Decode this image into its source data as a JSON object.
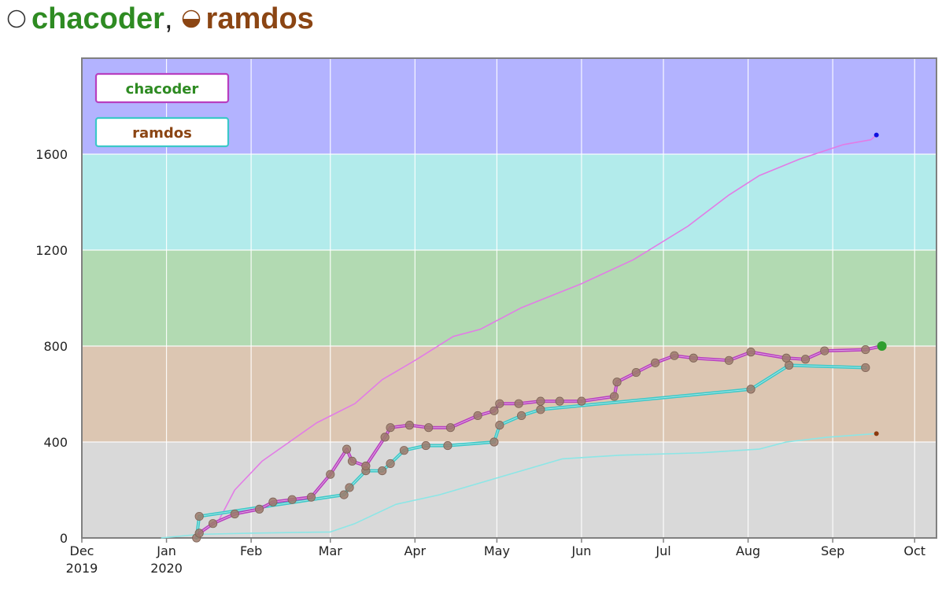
{
  "header": {
    "name1": "chacoder",
    "separator": ",",
    "name2": "ramdos",
    "color1": "#2e8b22",
    "color2": "#8b4513"
  },
  "chart_data": {
    "type": "line",
    "ylim": [
      0,
      2000
    ],
    "xlim": [
      "2019-12-01",
      "2020-10-09"
    ],
    "grid": true,
    "legend_placement": "top-left",
    "yticks": [
      0,
      400,
      800,
      1200,
      1600
    ],
    "xticks": [
      {
        "date": "2019-12-01",
        "label1": "Dec",
        "label2": "2019"
      },
      {
        "date": "2020-01-01",
        "label1": "Jan",
        "label2": "2020"
      },
      {
        "date": "2020-02-01",
        "label1": "Feb",
        "label2": ""
      },
      {
        "date": "2020-03-01",
        "label1": "Mar",
        "label2": ""
      },
      {
        "date": "2020-04-01",
        "label1": "Apr",
        "label2": ""
      },
      {
        "date": "2020-05-01",
        "label1": "May",
        "label2": ""
      },
      {
        "date": "2020-06-01",
        "label1": "Jun",
        "label2": ""
      },
      {
        "date": "2020-07-01",
        "label1": "Jul",
        "label2": ""
      },
      {
        "date": "2020-08-01",
        "label1": "Aug",
        "label2": ""
      },
      {
        "date": "2020-09-01",
        "label1": "Sep",
        "label2": ""
      },
      {
        "date": "2020-10-01",
        "label1": "Oct",
        "label2": ""
      }
    ],
    "bands": [
      {
        "from": 0,
        "to": 400,
        "color": "#d9d9d9"
      },
      {
        "from": 400,
        "to": 800,
        "color": "#dcc6b2"
      },
      {
        "from": 800,
        "to": 1200,
        "color": "#b2dab2"
      },
      {
        "from": 1200,
        "to": 1600,
        "color": "#b2ebeb"
      },
      {
        "from": 1600,
        "to": 2000,
        "color": "#b3b3ff"
      }
    ],
    "series": [
      {
        "name": "chacoder",
        "kind": "rating",
        "color": "#b83fbf",
        "label_color": "#2e8b22",
        "points": [
          [
            "2020-01-13",
            20
          ],
          [
            "2020-01-18",
            60
          ],
          [
            "2020-01-26",
            100
          ],
          [
            "2020-02-04",
            120
          ],
          [
            "2020-02-09",
            150
          ],
          [
            "2020-02-16",
            160
          ],
          [
            "2020-02-23",
            170
          ],
          [
            "2020-03-01",
            265
          ],
          [
            "2020-03-07",
            370
          ],
          [
            "2020-03-09",
            320
          ],
          [
            "2020-03-14",
            300
          ],
          [
            "2020-03-21",
            420
          ],
          [
            "2020-03-23",
            460
          ],
          [
            "2020-03-30",
            470
          ],
          [
            "2020-04-06",
            460
          ],
          [
            "2020-04-14",
            460
          ],
          [
            "2020-04-24",
            510
          ],
          [
            "2020-04-30",
            530
          ],
          [
            "2020-05-02",
            560
          ],
          [
            "2020-05-09",
            560
          ],
          [
            "2020-05-17",
            570
          ],
          [
            "2020-05-24",
            570
          ],
          [
            "2020-06-01",
            570
          ],
          [
            "2020-06-13",
            590
          ],
          [
            "2020-06-14",
            650
          ],
          [
            "2020-06-21",
            690
          ],
          [
            "2020-06-28",
            730
          ],
          [
            "2020-07-05",
            760
          ],
          [
            "2020-07-12",
            750
          ],
          [
            "2020-07-25",
            740
          ],
          [
            "2020-08-02",
            775
          ],
          [
            "2020-08-15",
            750
          ],
          [
            "2020-08-22",
            745
          ],
          [
            "2020-08-29",
            780
          ],
          [
            "2020-09-13",
            785
          ],
          [
            "2020-09-19",
            800
          ]
        ]
      },
      {
        "name": "ramdos",
        "kind": "rating",
        "color": "#3cc8c8",
        "label_color": "#8b4513",
        "points": [
          [
            "2020-01-12",
            0
          ],
          [
            "2020-01-13",
            90
          ],
          [
            "2020-03-06",
            180
          ],
          [
            "2020-03-08",
            210
          ],
          [
            "2020-03-14",
            280
          ],
          [
            "2020-03-20",
            280
          ],
          [
            "2020-03-23",
            310
          ],
          [
            "2020-03-28",
            365
          ],
          [
            "2020-04-05",
            385
          ],
          [
            "2020-04-13",
            385
          ],
          [
            "2020-04-30",
            400
          ],
          [
            "2020-05-02",
            470
          ],
          [
            "2020-05-10",
            510
          ],
          [
            "2020-05-17",
            535
          ],
          [
            "2020-08-02",
            620
          ],
          [
            "2020-08-16",
            720
          ],
          [
            "2020-09-13",
            710
          ]
        ]
      },
      {
        "name": "chacoder",
        "kind": "solved",
        "color": "#e27ce6",
        "points": [
          [
            "2020-01-11",
            0
          ],
          [
            "2020-01-20",
            70
          ],
          [
            "2020-01-26",
            200
          ],
          [
            "2020-02-05",
            320
          ],
          [
            "2020-02-15",
            400
          ],
          [
            "2020-02-25",
            480
          ],
          [
            "2020-03-10",
            560
          ],
          [
            "2020-03-20",
            660
          ],
          [
            "2020-04-01",
            740
          ],
          [
            "2020-04-15",
            840
          ],
          [
            "2020-04-25",
            870
          ],
          [
            "2020-05-10",
            960
          ],
          [
            "2020-06-01",
            1060
          ],
          [
            "2020-06-20",
            1160
          ],
          [
            "2020-07-10",
            1300
          ],
          [
            "2020-07-25",
            1430
          ],
          [
            "2020-08-05",
            1510
          ],
          [
            "2020-08-20",
            1580
          ],
          [
            "2020-09-05",
            1640
          ],
          [
            "2020-09-15",
            1660
          ],
          [
            "2020-09-17",
            1680
          ]
        ]
      },
      {
        "name": "ramdos",
        "kind": "solved",
        "color": "#8ce6e6",
        "points": [
          [
            "2019-12-30",
            0
          ],
          [
            "2020-01-13",
            15
          ],
          [
            "2020-02-01",
            20
          ],
          [
            "2020-03-01",
            25
          ],
          [
            "2020-03-10",
            60
          ],
          [
            "2020-03-25",
            140
          ],
          [
            "2020-04-10",
            180
          ],
          [
            "2020-04-25",
            230
          ],
          [
            "2020-05-10",
            280
          ],
          [
            "2020-05-25",
            330
          ],
          [
            "2020-06-15",
            345
          ],
          [
            "2020-07-15",
            355
          ],
          [
            "2020-08-05",
            370
          ],
          [
            "2020-08-15",
            400
          ],
          [
            "2020-08-30",
            420
          ],
          [
            "2020-09-17",
            435
          ]
        ]
      }
    ],
    "end_markers": [
      {
        "date": "2020-09-19",
        "value": 800,
        "color": "#2f9e2f"
      },
      {
        "date": "2020-09-17",
        "value": 1680,
        "color": "#1010e0"
      },
      {
        "date": "2020-09-17",
        "value": 435,
        "color": "#8b3a0f"
      }
    ]
  }
}
